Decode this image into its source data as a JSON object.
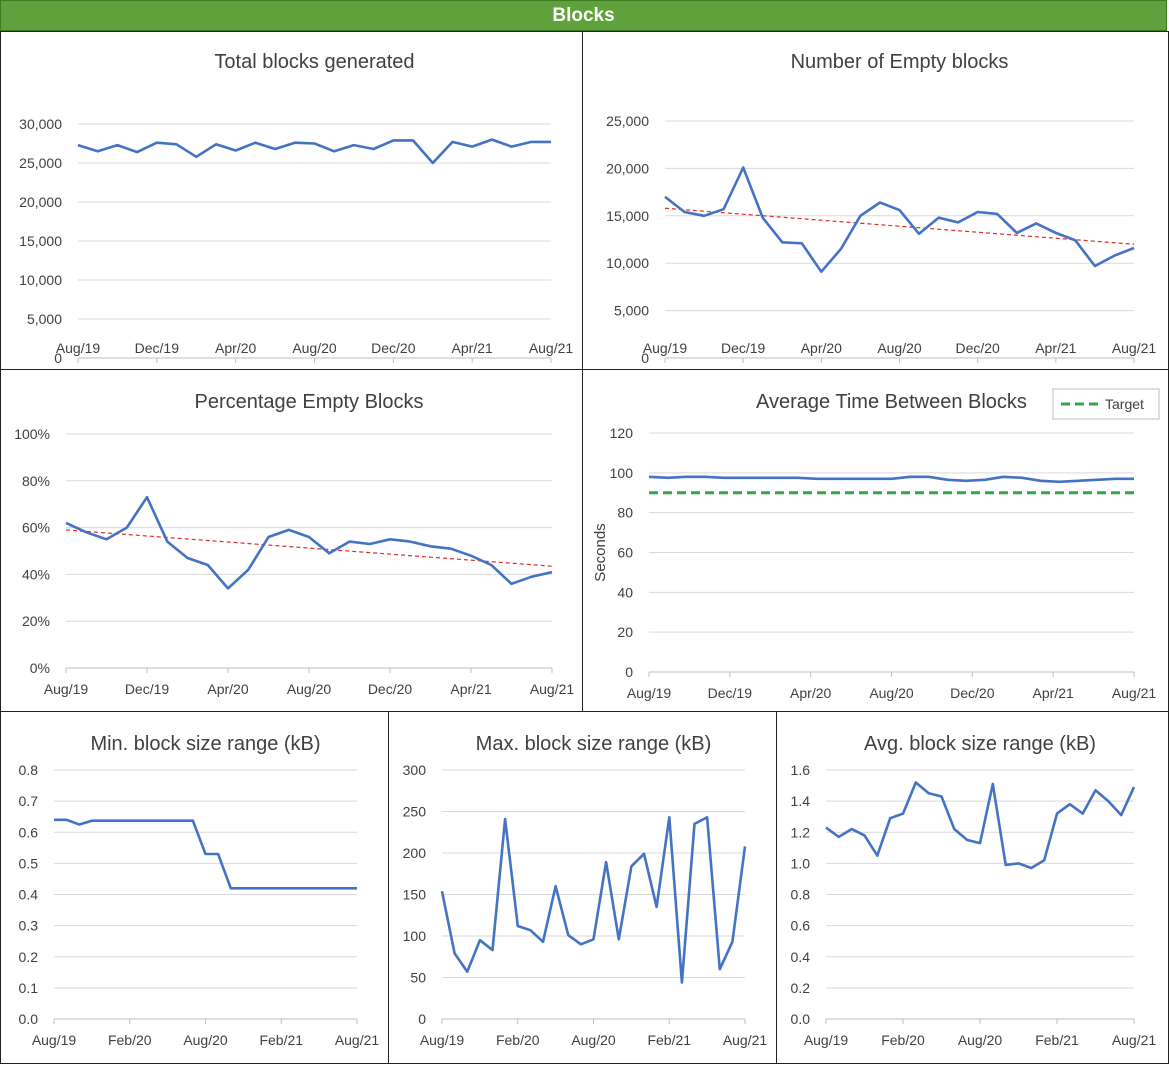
{
  "header": {
    "title": "Blocks"
  },
  "colors": {
    "header_bg": "#5fa23b",
    "series": "#4472c4",
    "trend": "#e32a2a",
    "target": "#2ea84a",
    "grid": "#d9d9d9",
    "text": "#404040"
  },
  "chart_data": [
    {
      "id": "total-blocks",
      "type": "line",
      "title": "Total blocks generated",
      "ylim": [
        0,
        30000
      ],
      "yticks": [
        0,
        5000,
        10000,
        15000,
        20000,
        25000,
        30000
      ],
      "ytick_labels": [
        "0",
        "5,000",
        "10,000",
        "15,000",
        "20,000",
        "25,000",
        "30,000"
      ],
      "xtick_labels": [
        "Aug/19",
        "Dec/19",
        "Apr/20",
        "Aug/20",
        "Dec/20",
        "Apr/21",
        "Aug/21"
      ],
      "x_span": 24,
      "grid": true,
      "series": [
        {
          "values": [
            27300,
            26500,
            27300,
            26400,
            27600,
            27400,
            25800,
            27400,
            26600,
            27600,
            26800,
            27600,
            27500,
            26500,
            27300,
            26800,
            27900,
            27900,
            25000,
            27700,
            27100,
            28000,
            27100,
            27700,
            27700
          ]
        }
      ]
    },
    {
      "id": "empty-blocks",
      "type": "line",
      "title": "Number of Empty blocks",
      "ylim": [
        0,
        25000
      ],
      "yticks": [
        0,
        5000,
        10000,
        15000,
        20000,
        25000
      ],
      "ytick_labels": [
        "0",
        "5,000",
        "10,000",
        "15,000",
        "20,000",
        "25,000"
      ],
      "xtick_labels": [
        "Aug/19",
        "Dec/19",
        "Apr/20",
        "Aug/20",
        "Dec/20",
        "Apr/21",
        "Aug/21"
      ],
      "x_span": 24,
      "grid": true,
      "series": [
        {
          "values": [
            17000,
            15400,
            15000,
            15700,
            20100,
            14800,
            12200,
            12100,
            9100,
            11500,
            15000,
            16400,
            15600,
            13100,
            14800,
            14300,
            15400,
            15200,
            13200,
            14200,
            13200,
            12400,
            9700,
            10800,
            11600
          ]
        }
      ],
      "trendline": [
        15800,
        12000
      ]
    },
    {
      "id": "pct-empty",
      "type": "line",
      "title": "Percentage Empty Blocks",
      "ylim": [
        0,
        100
      ],
      "yticks": [
        0,
        20,
        40,
        60,
        80,
        100
      ],
      "ytick_labels": [
        "0%",
        "20%",
        "40%",
        "60%",
        "80%",
        "100%"
      ],
      "xtick_labels": [
        "Aug/19",
        "Dec/19",
        "Apr/20",
        "Aug/20",
        "Dec/20",
        "Apr/21",
        "Aug/21"
      ],
      "x_span": 24,
      "grid": true,
      "series": [
        {
          "values": [
            62,
            58,
            55,
            60,
            73,
            54,
            47,
            44,
            34,
            42,
            56,
            59,
            56,
            49,
            54,
            53,
            55,
            54,
            52,
            51,
            48,
            44,
            36,
            39,
            41
          ]
        }
      ],
      "trendline": [
        59,
        43.5
      ]
    },
    {
      "id": "avg-time",
      "type": "line",
      "title": "Average Time Between Blocks",
      "ylabel": "Seconds",
      "ylim": [
        0,
        120
      ],
      "yticks": [
        0,
        20,
        40,
        60,
        80,
        100,
        120
      ],
      "ytick_labels": [
        "0",
        "20",
        "40",
        "60",
        "80",
        "100",
        "120"
      ],
      "xtick_labels": [
        "Aug/19",
        "Dec/19",
        "Apr/20",
        "Aug/20",
        "Dec/20",
        "Apr/21",
        "Aug/21"
      ],
      "x_span": 24,
      "grid": true,
      "legend": "top-right",
      "series": [
        {
          "values": [
            98,
            97.5,
            98,
            98,
            97.5,
            97.5,
            97.5,
            97.5,
            97.5,
            97,
            97,
            97,
            97,
            97,
            98,
            98,
            96.5,
            96,
            96.5,
            98,
            97.5,
            96,
            95.5,
            96,
            96.5,
            97,
            97
          ]
        },
        {
          "name": "Target",
          "style": "dashed",
          "values": [
            90,
            90
          ]
        }
      ],
      "main_series_points": 27
    },
    {
      "id": "min-size",
      "type": "line",
      "title": "Min. block size range (kB)",
      "ylim": [
        0,
        0.8
      ],
      "yticks": [
        0,
        0.1,
        0.2,
        0.3,
        0.4,
        0.5,
        0.6,
        0.7,
        0.8
      ],
      "ytick_labels": [
        "0.0",
        "0.1",
        "0.2",
        "0.3",
        "0.4",
        "0.5",
        "0.6",
        "0.7",
        "0.8"
      ],
      "xtick_labels": [
        "Aug/19",
        "Feb/20",
        "Aug/20",
        "Feb/21",
        "Aug/21"
      ],
      "x_span": 24,
      "grid": true,
      "series": [
        {
          "values": [
            0.64,
            0.64,
            0.625,
            0.637,
            0.637,
            0.637,
            0.637,
            0.637,
            0.637,
            0.637,
            0.637,
            0.637,
            0.53,
            0.53,
            0.42,
            0.42,
            0.42,
            0.42,
            0.42,
            0.42,
            0.42,
            0.42,
            0.42,
            0.42,
            0.42
          ]
        }
      ]
    },
    {
      "id": "max-size",
      "type": "line",
      "title": "Max. block size range (kB)",
      "ylim": [
        0,
        300
      ],
      "yticks": [
        0,
        50,
        100,
        150,
        200,
        250,
        300
      ],
      "ytick_labels": [
        "0",
        "50",
        "100",
        "150",
        "200",
        "250",
        "300"
      ],
      "xtick_labels": [
        "Aug/19",
        "Feb/20",
        "Aug/20",
        "Feb/21",
        "Aug/21"
      ],
      "x_span": 24,
      "grid": true,
      "series": [
        {
          "values": [
            154,
            79,
            57,
            95,
            83,
            241,
            112,
            107,
            93,
            160,
            101,
            90,
            96,
            189,
            96,
            184,
            199,
            135,
            243,
            44,
            235,
            243,
            60,
            93,
            208
          ]
        }
      ]
    },
    {
      "id": "avg-size",
      "type": "line",
      "title": "Avg. block size range (kB)",
      "ylim": [
        0,
        1.6
      ],
      "yticks": [
        0,
        0.2,
        0.4,
        0.6,
        0.8,
        1.0,
        1.2,
        1.4,
        1.6
      ],
      "ytick_labels": [
        "0.0",
        "0.2",
        "0.4",
        "0.6",
        "0.8",
        "1.0",
        "1.2",
        "1.4",
        "1.6"
      ],
      "xtick_labels": [
        "Aug/19",
        "Feb/20",
        "Aug/20",
        "Feb/21",
        "Aug/21"
      ],
      "x_span": 24,
      "grid": true,
      "series": [
        {
          "values": [
            1.23,
            1.17,
            1.22,
            1.18,
            1.05,
            1.29,
            1.32,
            1.52,
            1.45,
            1.43,
            1.22,
            1.15,
            1.13,
            1.51,
            0.99,
            1.0,
            0.97,
            1.02,
            1.32,
            1.38,
            1.32,
            1.47,
            1.4,
            1.31,
            1.49
          ]
        }
      ]
    }
  ]
}
